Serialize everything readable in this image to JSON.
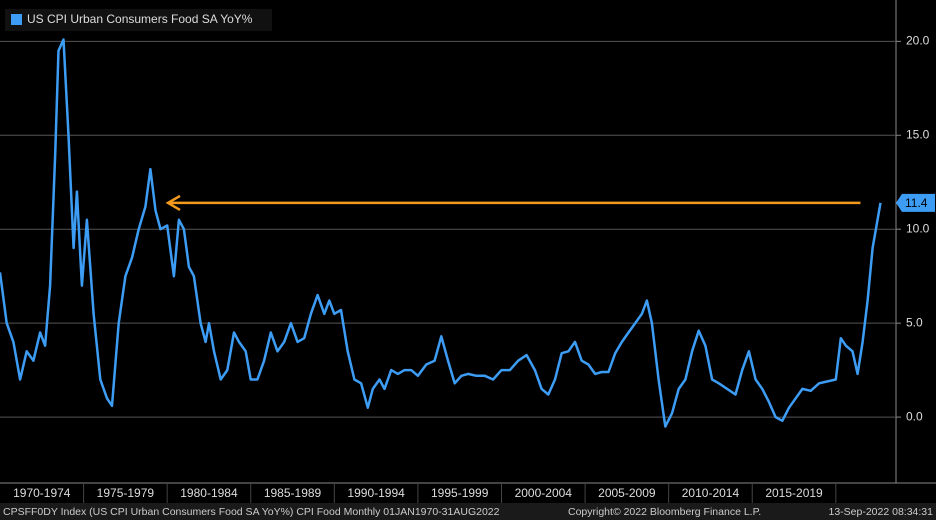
{
  "chart_data": {
    "type": "line",
    "legend": "US CPI Urban Consumers Food SA YoY%",
    "x": [
      1970.0,
      1970.4,
      1970.8,
      1971.2,
      1971.6,
      1972.0,
      1972.4,
      1972.7,
      1973.0,
      1973.3,
      1973.5,
      1973.8,
      1974.1,
      1974.4,
      1974.6,
      1974.9,
      1975.2,
      1975.6,
      1976.0,
      1976.4,
      1976.7,
      1977.1,
      1977.5,
      1977.9,
      1978.3,
      1978.7,
      1979.0,
      1979.3,
      1979.6,
      1980.0,
      1980.4,
      1980.7,
      1981.0,
      1981.3,
      1981.6,
      1982.0,
      1982.3,
      1982.5,
      1982.8,
      1983.2,
      1983.6,
      1984.0,
      1984.3,
      1984.7,
      1985.0,
      1985.4,
      1985.8,
      1986.2,
      1986.6,
      1987.0,
      1987.4,
      1987.8,
      1988.2,
      1988.6,
      1989.0,
      1989.4,
      1989.7,
      1990.0,
      1990.4,
      1990.8,
      1991.2,
      1991.6,
      1992.0,
      1992.3,
      1992.7,
      1993.0,
      1993.4,
      1993.8,
      1994.2,
      1994.6,
      1995.0,
      1995.5,
      1996.0,
      1996.4,
      1996.8,
      1997.2,
      1997.6,
      1998.0,
      1998.5,
      1999.0,
      1999.5,
      2000.0,
      2000.5,
      2001.0,
      2001.5,
      2002.0,
      2002.4,
      2002.8,
      2003.2,
      2003.6,
      2004.0,
      2004.4,
      2004.8,
      2005.2,
      2005.6,
      2006.0,
      2006.4,
      2006.8,
      2007.2,
      2007.6,
      2008.0,
      2008.4,
      2008.7,
      2009.0,
      2009.4,
      2009.8,
      2010.2,
      2010.6,
      2011.0,
      2011.4,
      2011.8,
      2012.2,
      2012.6,
      2013.0,
      2013.5,
      2014.0,
      2014.4,
      2014.8,
      2015.2,
      2015.6,
      2016.0,
      2016.4,
      2016.8,
      2017.2,
      2017.6,
      2018.0,
      2018.5,
      2019.0,
      2019.5,
      2020.0,
      2020.3,
      2020.6,
      2021.0,
      2021.3,
      2021.6,
      2021.9,
      2022.2,
      2022.4,
      2022.67
    ],
    "series": [
      {
        "name": "US CPI Urban Consumers Food SA YoY%",
        "color": "#3d9df5",
        "values": [
          7.7,
          5,
          4,
          2,
          3.5,
          3,
          4.5,
          3.8,
          7,
          14,
          19.5,
          20.1,
          15,
          9,
          12,
          7,
          10.5,
          5.5,
          2,
          1,
          0.6,
          5,
          7.5,
          8.5,
          10,
          11.2,
          13.2,
          11,
          10,
          10.2,
          7.5,
          10.5,
          10,
          8,
          7.5,
          5,
          4,
          5,
          3.5,
          2,
          2.5,
          4.5,
          4,
          3.5,
          2,
          2,
          3,
          4.5,
          3.5,
          4,
          5,
          4,
          4.2,
          5.5,
          6.5,
          5.5,
          6.2,
          5.5,
          5.7,
          3.5,
          2,
          1.8,
          0.5,
          1.5,
          2,
          1.5,
          2.5,
          2.3,
          2.5,
          2.5,
          2.2,
          2.8,
          3,
          4.3,
          3,
          1.8,
          2.2,
          2.3,
          2.2,
          2.2,
          2,
          2.5,
          2.5,
          3,
          3.3,
          2.5,
          1.5,
          1.2,
          2,
          3.4,
          3.5,
          4,
          3,
          2.8,
          2.3,
          2.4,
          2.4,
          3.4,
          4,
          4.5,
          5,
          5.5,
          6.2,
          5,
          2,
          -0.5,
          0.2,
          1.5,
          2,
          3.5,
          4.6,
          3.8,
          2,
          1.8,
          1.5,
          1.2,
          2.5,
          3.5,
          2,
          1.5,
          0.8,
          0,
          -0.2,
          0.5,
          1,
          1.5,
          1.4,
          1.8,
          1.9,
          2,
          4.2,
          3.8,
          3.5,
          2.3,
          4,
          6.2,
          9,
          10,
          11.4
        ]
      }
    ],
    "xlim": [
      1970,
      2023.6
    ],
    "x_bands": [
      "1970-1974",
      "1975-1979",
      "1980-1984",
      "1985-1989",
      "1990-1994",
      "1995-1999",
      "2000-2004",
      "2005-2009",
      "2010-2014",
      "2015-2019"
    ],
    "ylim": [
      -2.55,
      22.2
    ],
    "yticks": [
      {
        "value": 0,
        "label": "0.0"
      },
      {
        "value": 5,
        "label": "5.0"
      },
      {
        "value": 10,
        "label": "10.0"
      },
      {
        "value": 15,
        "label": "15.0"
      },
      {
        "value": 20,
        "label": "20.0"
      }
    ],
    "grid": true,
    "annotation_color": "#f39a1e"
  },
  "footer": {
    "left": "CPSFF0DY Index (US CPI Urban Consumers Food SA YoY%) CPI Food  Monthly 01JAN1970-31AUG2022",
    "center": "Copyright© 2022 Bloomberg Finance L.P.",
    "right": "13-Sep-2022 08:34:31"
  }
}
